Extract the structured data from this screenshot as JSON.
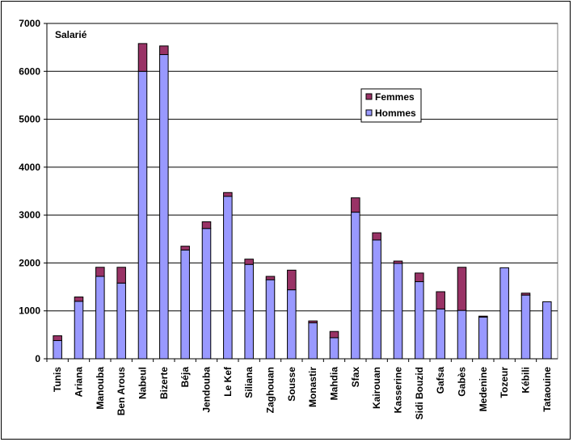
{
  "chart_data": {
    "type": "bar",
    "stacked": true,
    "title": "Salarié",
    "categories": [
      "Tunis",
      "Ariana",
      "Manouba",
      "Ben Arous",
      "Nabeul",
      "Bizerte",
      "Béja",
      "Jendouba",
      "Le Kef",
      "Siliana",
      "Zaghouan",
      "Sousse",
      "Monastir",
      "Mahdia",
      "Sfax",
      "Kairouan",
      "Kasserine",
      "Sidi Bouzid",
      "Gafsa",
      "Gabès",
      "Medenine",
      "Tozeur",
      "Kébili",
      "Tataouine"
    ],
    "series": [
      {
        "name": "Hommes",
        "color": "#9999ff",
        "values": [
          380,
          1200,
          1720,
          1580,
          6000,
          6350,
          2270,
          2720,
          3390,
          1970,
          1650,
          1440,
          750,
          440,
          3060,
          2480,
          1990,
          1610,
          1040,
          1010,
          870,
          1900,
          1330,
          1190
        ]
      },
      {
        "name": "Femmes",
        "color": "#993366",
        "values": [
          100,
          90,
          190,
          330,
          580,
          180,
          80,
          140,
          80,
          110,
          70,
          410,
          40,
          130,
          300,
          150,
          50,
          180,
          360,
          900,
          20,
          0,
          40,
          0
        ]
      }
    ],
    "ylim": [
      0,
      7000
    ],
    "yticks": [
      "0",
      "1000",
      "2000",
      "3000",
      "4000",
      "5000",
      "6000",
      "7000"
    ],
    "legend": "upper-right",
    "legend_entries": [
      "Femmes",
      "Hommes"
    ],
    "grid": true
  }
}
